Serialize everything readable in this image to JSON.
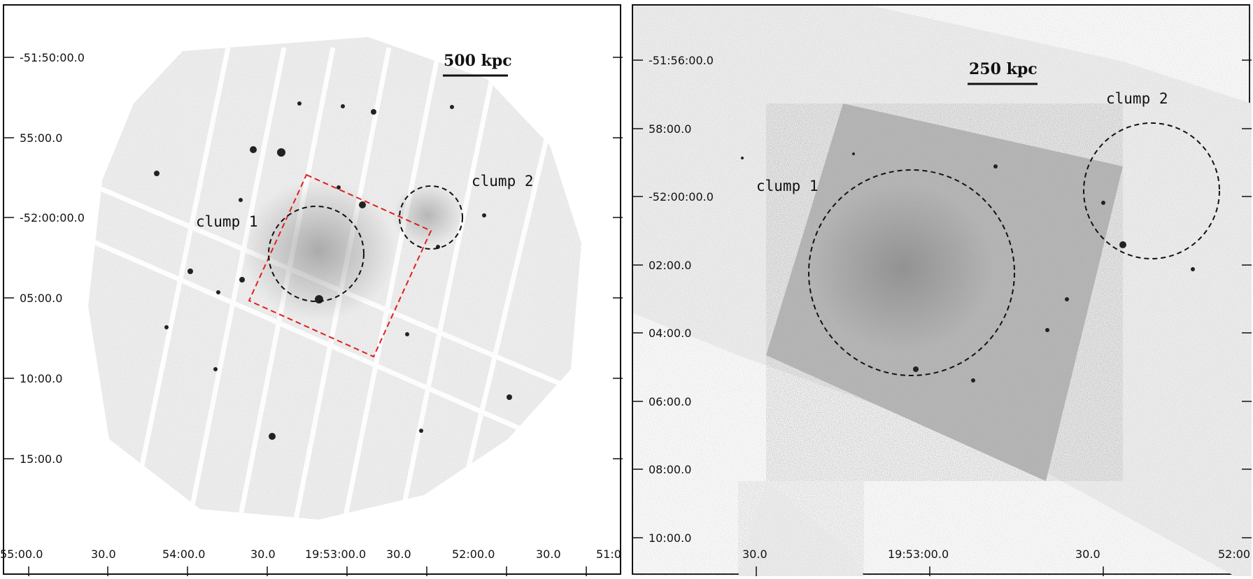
{
  "left_panel": {
    "scale_bar": "500 kpc",
    "clump_labels": [
      "clump 1",
      "clump 2"
    ],
    "y_ticks": [
      "-51:50:00.0",
      "55:00.0",
      "-52:00:00.0",
      "05:00.0",
      "10:00.0",
      "15:00.0"
    ],
    "x_ticks": [
      "55:00.0",
      "30.0",
      "54:00.0",
      "30.0",
      "19:53:00.0",
      "30.0",
      "52:00.0",
      "30.0",
      "51:0"
    ],
    "colors": {
      "box": "#e0201e",
      "circle": "#111111",
      "image": "#9a9a9a"
    }
  },
  "right_panel": {
    "scale_bar": "250 kpc",
    "clump_labels": [
      "clump 1",
      "clump 2"
    ],
    "y_ticks": [
      "-51:56:00.0",
      "58:00.0",
      "-52:00:00.0",
      "02:00.0",
      "04:00.0",
      "06:00.0",
      "08:00.0",
      "10:00.0"
    ],
    "x_ticks": [
      "30.0",
      "19:53:00.0",
      "30.0",
      "52:00"
    ],
    "colors": {
      "circle": "#111111",
      "image": "#7a7a7a"
    }
  }
}
